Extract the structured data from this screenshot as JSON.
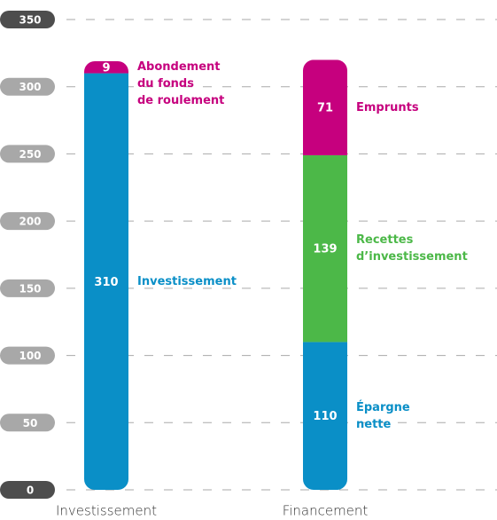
{
  "chart_data": {
    "type": "stacked_bar",
    "categories": [
      "Investissement",
      "Financement"
    ],
    "series": [
      {
        "name": "Investissement",
        "color": "#0a8fc7",
        "values": [
          310,
          null
        ]
      },
      {
        "name": "Abondement\ndu fonds\nde roulement",
        "color": "#c6007e",
        "values": [
          9,
          null
        ]
      },
      {
        "name": "Épargne\nnette",
        "color": "#0a8fc7",
        "values": [
          null,
          110
        ]
      },
      {
        "name": "Recettes\nd’investissement",
        "color": "#4cb848",
        "values": [
          null,
          139
        ]
      },
      {
        "name": "Emprunts",
        "color": "#c6007e",
        "values": [
          null,
          71
        ]
      }
    ],
    "ylim": [
      0,
      350
    ],
    "yticks": [
      0,
      50,
      100,
      150,
      200,
      250,
      300,
      350
    ],
    "grid": true
  }
}
